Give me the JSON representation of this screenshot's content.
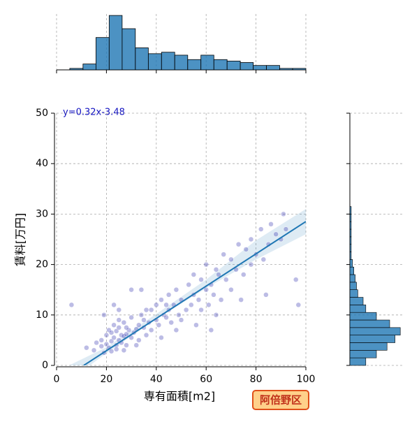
{
  "chart_data": {
    "type": "joint",
    "xlabel": "専有面積[m2]",
    "ylabel": "賃料[万円]",
    "annotation": "y=0.32x-3.48",
    "badge": "阿倍野区",
    "xlim": [
      0,
      100
    ],
    "ylim": [
      0,
      50
    ],
    "xticks": [
      0,
      20,
      40,
      60,
      80,
      100
    ],
    "yticks": [
      0,
      10,
      20,
      30,
      40,
      50
    ],
    "grid": true,
    "color": "#1f77b4",
    "point_color": "#2222aa",
    "points": [
      [
        12,
        3.5
      ],
      [
        15,
        3
      ],
      [
        16,
        4.5
      ],
      [
        18,
        3.8
      ],
      [
        18,
        5
      ],
      [
        19,
        2.5
      ],
      [
        20,
        4.2
      ],
      [
        20,
        6
      ],
      [
        21,
        3.5
      ],
      [
        21,
        7
      ],
      [
        22,
        4.8
      ],
      [
        22,
        6.5
      ],
      [
        22,
        2.8
      ],
      [
        23,
        5.5
      ],
      [
        23,
        8
      ],
      [
        24,
        4
      ],
      [
        24,
        6.8
      ],
      [
        24,
        3.2
      ],
      [
        25,
        5
      ],
      [
        25,
        7.5
      ],
      [
        25,
        9
      ],
      [
        26,
        4.5
      ],
      [
        26,
        6
      ],
      [
        27,
        5.8
      ],
      [
        27,
        8.5
      ],
      [
        28,
        6.2
      ],
      [
        28,
        4
      ],
      [
        29,
        7
      ],
      [
        30,
        5.5
      ],
      [
        30,
        9.5
      ],
      [
        31,
        6.5
      ],
      [
        32,
        7.2
      ],
      [
        33,
        8
      ],
      [
        33,
        5
      ],
      [
        34,
        10
      ],
      [
        35,
        7.5
      ],
      [
        35,
        9
      ],
      [
        36,
        6
      ],
      [
        37,
        8.5
      ],
      [
        38,
        11
      ],
      [
        38,
        7
      ],
      [
        40,
        9
      ],
      [
        40,
        12
      ],
      [
        41,
        8
      ],
      [
        42,
        13
      ],
      [
        43,
        10
      ],
      [
        44,
        9.5
      ],
      [
        45,
        11
      ],
      [
        45,
        14
      ],
      [
        46,
        8.5
      ],
      [
        47,
        12
      ],
      [
        48,
        15
      ],
      [
        49,
        10
      ],
      [
        50,
        13
      ],
      [
        50,
        9
      ],
      [
        52,
        11
      ],
      [
        53,
        16
      ],
      [
        54,
        12
      ],
      [
        55,
        14
      ],
      [
        55,
        18
      ],
      [
        57,
        13
      ],
      [
        58,
        11
      ],
      [
        58,
        17
      ],
      [
        60,
        15
      ],
      [
        60,
        20
      ],
      [
        61,
        12
      ],
      [
        62,
        16
      ],
      [
        63,
        14
      ],
      [
        64,
        19
      ],
      [
        65,
        18
      ],
      [
        66,
        13
      ],
      [
        67,
        22
      ],
      [
        68,
        17
      ],
      [
        70,
        15
      ],
      [
        70,
        21
      ],
      [
        72,
        19
      ],
      [
        73,
        24
      ],
      [
        75,
        18
      ],
      [
        76,
        23
      ],
      [
        78,
        20
      ],
      [
        78,
        25
      ],
      [
        80,
        22
      ],
      [
        82,
        27
      ],
      [
        83,
        21
      ],
      [
        85,
        24
      ],
      [
        86,
        28
      ],
      [
        88,
        26
      ],
      [
        90,
        25
      ],
      [
        91,
        30
      ],
      [
        92,
        27
      ],
      [
        96,
        17
      ],
      [
        97,
        12
      ],
      [
        6,
        12
      ],
      [
        23,
        12
      ],
      [
        30,
        15
      ],
      [
        44,
        12
      ],
      [
        25,
        11
      ],
      [
        28,
        7.5
      ],
      [
        34,
        15
      ],
      [
        19,
        10
      ],
      [
        27,
        3
      ],
      [
        32,
        4
      ],
      [
        36,
        11
      ],
      [
        42,
        5.5
      ],
      [
        48,
        7
      ],
      [
        56,
        8
      ],
      [
        64,
        10
      ],
      [
        74,
        13
      ],
      [
        84,
        14
      ],
      [
        62,
        7
      ]
    ],
    "fit": {
      "x": [
        10.9,
        100
      ],
      "y": [
        0,
        28.52
      ]
    },
    "band": {
      "x": [
        5,
        20,
        40,
        60,
        80,
        100
      ],
      "lower": [
        -3,
        2.4,
        9.2,
        15.3,
        21,
        26
      ],
      "upper": [
        0,
        3.6,
        10.2,
        17,
        24.8,
        31
      ]
    },
    "top_hist": {
      "bins": [
        5.3,
        10.6,
        15.8,
        21.1,
        26.3,
        31.6,
        36.8,
        42.1,
        47.4,
        52.6,
        57.9,
        63.1,
        68.4,
        73.7,
        78.9,
        84.2,
        89.5,
        94.7,
        100
      ],
      "counts": [
        1,
        4,
        22,
        37,
        28,
        15,
        11,
        12,
        10,
        7,
        10,
        7,
        6,
        5,
        3,
        3,
        1,
        1
      ],
      "ylim": [
        0,
        38
      ]
    },
    "right_hist": {
      "bins": [
        0,
        1.5,
        3,
        4.5,
        6,
        7.5,
        9,
        10.5,
        12,
        13.5,
        15,
        16.5,
        18,
        19.5,
        21,
        22.5,
        24,
        25.5,
        27,
        28.5,
        30,
        31.5
      ],
      "counts": [
        12,
        20,
        28,
        34,
        38,
        30,
        20,
        12,
        10,
        6,
        5,
        4,
        3,
        2,
        1,
        1,
        1,
        1,
        1,
        1,
        1
      ],
      "xlim": [
        0,
        40
      ]
    }
  }
}
